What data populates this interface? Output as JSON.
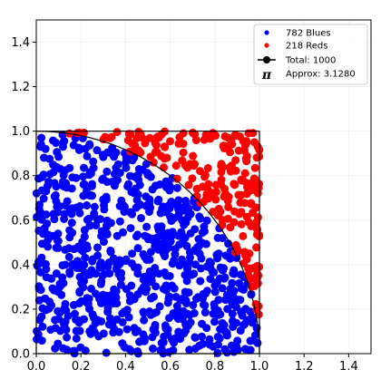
{
  "chart_data": {
    "type": "scatter",
    "title": "",
    "xlabel": "",
    "ylabel": "",
    "xlim": [
      0,
      1.5
    ],
    "ylim": [
      0,
      1.5
    ],
    "xticks": [
      "0.0",
      "0.2",
      "0.4",
      "0.6",
      "0.8",
      "1.0",
      "1.2",
      "1.4"
    ],
    "yticks": [
      "0.0",
      "0.2",
      "0.4",
      "0.6",
      "0.8",
      "1.0",
      "1.2",
      "1.4"
    ],
    "grid": true,
    "legend_position": "top-right",
    "colors": {
      "blue": "#0000ff",
      "red": "#ff0000",
      "line": "#000000",
      "grid": "#eeeeee"
    },
    "series": [
      {
        "name": "782 Blues",
        "color": "#0000ff",
        "count": 782,
        "region": "inside quarter circle x^2 + y^2 <= 1"
      },
      {
        "name": "218 Reds",
        "color": "#ff0000",
        "count": 218,
        "region": "outside quarter circle, inside unit square"
      }
    ],
    "unit_square": {
      "x": [
        0,
        1,
        1,
        0,
        0
      ],
      "y": [
        0,
        0,
        1,
        1,
        0
      ]
    },
    "quarter_circle": {
      "center": [
        0,
        0
      ],
      "radius": 1
    },
    "legend": {
      "blues": "782 Blues",
      "reds": "218 Reds",
      "total": "Total: 1000",
      "pi_symbol": "π",
      "approx": "Approx: 3.1280"
    }
  }
}
